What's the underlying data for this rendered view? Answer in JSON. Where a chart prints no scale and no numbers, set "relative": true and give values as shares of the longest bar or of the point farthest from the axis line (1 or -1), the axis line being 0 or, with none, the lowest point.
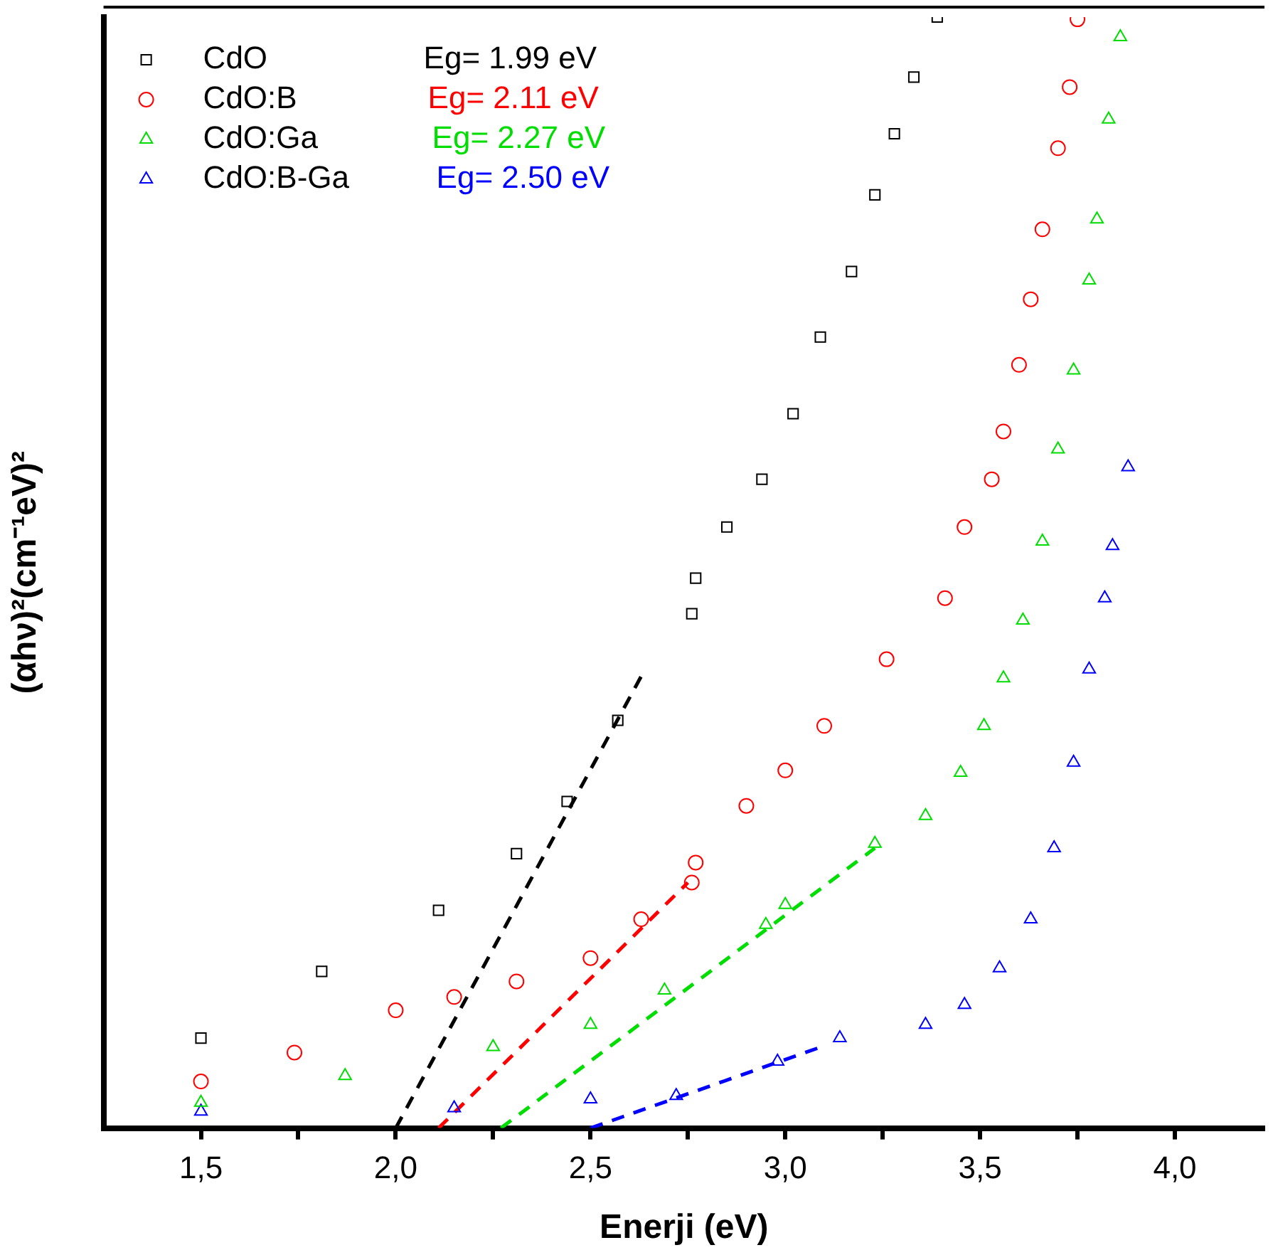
{
  "chart_data": {
    "type": "scatter",
    "xlabel": "Enerji (eV)",
    "ylabel": "(αhν)²(cm⁻¹eV)²",
    "relative": true,
    "legend": "top left",
    "xlim": [
      1.25,
      4.23
    ],
    "xticks": [
      {
        "value": 1.5,
        "label": "1,5"
      },
      {
        "value": 1.75,
        "label": null
      },
      {
        "value": 2.0,
        "label": "2,0"
      },
      {
        "value": 2.25,
        "label": null
      },
      {
        "value": 2.5,
        "label": "2,5"
      },
      {
        "value": 2.75,
        "label": null
      },
      {
        "value": 3.0,
        "label": "3,0"
      },
      {
        "value": 3.25,
        "label": null
      },
      {
        "value": 3.5,
        "label": "3,5"
      },
      {
        "value": 3.75,
        "label": null
      },
      {
        "value": 4.0,
        "label": "4,0"
      }
    ],
    "annotations": [
      "Eg= 1.99 eV",
      "Eg= 2.11 eV",
      "Eg= 2.27 eV",
      "Eg= 2.50 eV"
    ],
    "series": [
      {
        "name": "CdO",
        "color": "#000000",
        "marker": "square",
        "x": [
          1.5,
          1.81,
          2.11,
          2.31,
          2.44,
          2.57,
          2.76,
          2.77,
          2.85,
          2.94,
          3.02,
          3.09,
          3.17,
          3.23,
          3.28,
          3.33,
          3.39
        ],
        "values": [
          0.081,
          0.141,
          0.196,
          0.247,
          0.294,
          0.367,
          0.463,
          0.495,
          0.541,
          0.584,
          0.643,
          0.712,
          0.771,
          0.84,
          0.895,
          0.946,
          1
        ]
      },
      {
        "name": "CdO:B",
        "color": "#ff0000",
        "marker": "circle",
        "x": [
          1.5,
          1.74,
          2.0,
          2.15,
          2.31,
          2.5,
          2.63,
          2.76,
          2.77,
          2.9,
          3.0,
          3.1,
          3.26,
          3.41,
          3.46,
          3.53,
          3.56,
          3.6,
          3.63,
          3.66,
          3.7,
          3.73,
          3.75
        ],
        "values": [
          0.042,
          0.068,
          0.106,
          0.118,
          0.132,
          0.153,
          0.188,
          0.221,
          0.239,
          0.29,
          0.322,
          0.362,
          0.422,
          0.477,
          0.541,
          0.584,
          0.627,
          0.687,
          0.746,
          0.809,
          0.882,
          0.937,
          0.998
        ]
      },
      {
        "name": "CdO:Ga",
        "color": "#00dd00",
        "marker": "triangle",
        "x": [
          1.5,
          1.87,
          2.25,
          2.5,
          2.69,
          2.95,
          3.0,
          3.23,
          3.36,
          3.45,
          3.51,
          3.56,
          3.61,
          3.66,
          3.7,
          3.74,
          3.78,
          3.8,
          3.83,
          3.86
        ],
        "values": [
          0.023,
          0.047,
          0.073,
          0.093,
          0.124,
          0.183,
          0.201,
          0.256,
          0.281,
          0.32,
          0.362,
          0.405,
          0.457,
          0.528,
          0.611,
          0.682,
          0.763,
          0.818,
          0.908,
          0.982
        ]
      },
      {
        "name": "CdO:B-Ga",
        "color": "#0000ff",
        "marker": "triangle",
        "x": [
          1.5,
          2.15,
          2.5,
          2.72,
          2.98,
          3.14,
          3.36,
          3.46,
          3.55,
          3.63,
          3.69,
          3.74,
          3.78,
          3.82,
          3.84,
          3.88
        ],
        "values": [
          0.015,
          0.018,
          0.026,
          0.029,
          0.06,
          0.081,
          0.093,
          0.111,
          0.144,
          0.188,
          0.252,
          0.329,
          0.413,
          0.477,
          0.524,
          0.595
        ]
      },
      {
        "type": "line",
        "color": "#000000",
        "line_style": "dashed",
        "x": [
          2.0,
          2.64
        ],
        "values": [
          0,
          0.413
        ]
      },
      {
        "type": "line",
        "color": "#ff0000",
        "line_style": "dashed",
        "x": [
          2.11,
          2.75
        ],
        "values": [
          0,
          0.221
        ]
      },
      {
        "type": "line",
        "color": "#00dd00",
        "line_style": "dashed",
        "x": [
          2.27,
          3.23
        ],
        "values": [
          0,
          0.252
        ]
      },
      {
        "type": "line",
        "color": "#0000ff",
        "line_style": "dashed",
        "x": [
          2.5,
          3.1
        ],
        "values": [
          0,
          0.074
        ]
      }
    ]
  }
}
